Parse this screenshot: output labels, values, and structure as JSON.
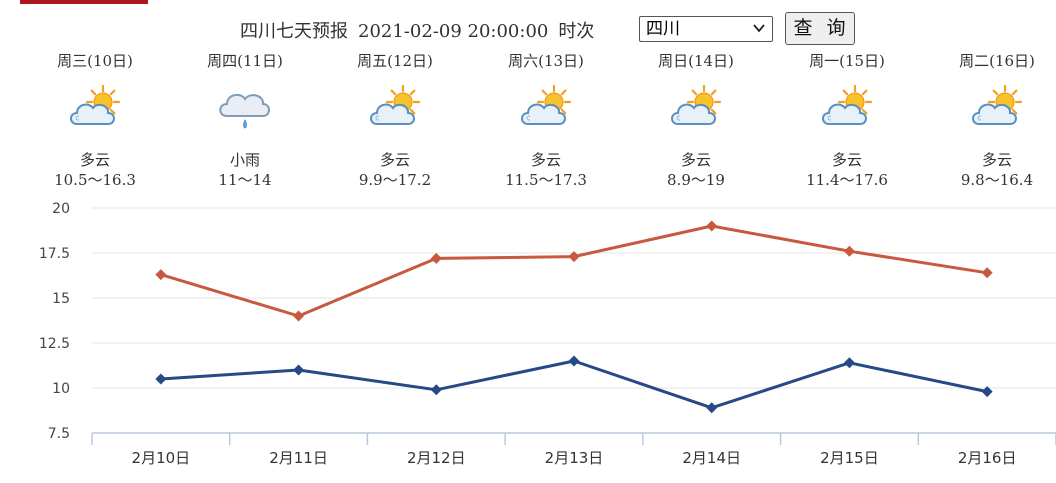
{
  "header": {
    "title_region": "四川七天预报",
    "title_datetime": "2021-02-09 20:00:00",
    "title_suffix": "时次",
    "select_value": "四川",
    "query_label": "查 询"
  },
  "colors": {
    "accent_bar": "#b0141e",
    "high_series": "#c8583e",
    "low_series": "#264a86",
    "grid": "#e4e4e4",
    "axis": "#b8c8dc"
  },
  "days": [
    {
      "label": "周三(10日)",
      "icon": "partly-cloudy-icon",
      "condition": "多云",
      "range": "10.5～16.3"
    },
    {
      "label": "周四(11日)",
      "icon": "light-rain-icon",
      "condition": "小雨",
      "range": "11～14"
    },
    {
      "label": "周五(12日)",
      "icon": "partly-cloudy-icon",
      "condition": "多云",
      "range": "9.9～17.2"
    },
    {
      "label": "周六(13日)",
      "icon": "partly-cloudy-icon",
      "condition": "多云",
      "range": "11.5～17.3"
    },
    {
      "label": "周日(14日)",
      "icon": "partly-cloudy-icon",
      "condition": "多云",
      "range": "8.9～19"
    },
    {
      "label": "周一(15日)",
      "icon": "partly-cloudy-icon",
      "condition": "多云",
      "range": "11.4～17.6"
    },
    {
      "label": "周二(16日)",
      "icon": "partly-cloudy-icon",
      "condition": "多云",
      "range": "9.8～16.4"
    }
  ],
  "chart_data": {
    "type": "line",
    "categories": [
      "2月10日",
      "2月11日",
      "2月12日",
      "2月13日",
      "2月14日",
      "2月15日",
      "2月16日"
    ],
    "series": [
      {
        "values": [
          16.3,
          14,
          17.2,
          17.3,
          19,
          17.6,
          16.4
        ]
      },
      {
        "values": [
          10.5,
          11,
          9.9,
          11.5,
          8.9,
          11.4,
          9.8
        ]
      }
    ],
    "y_ticks": [
      "20",
      "17.5",
      "15",
      "12.5",
      "10",
      "7.5"
    ],
    "ylim": [
      7.5,
      20
    ],
    "grid": true
  }
}
